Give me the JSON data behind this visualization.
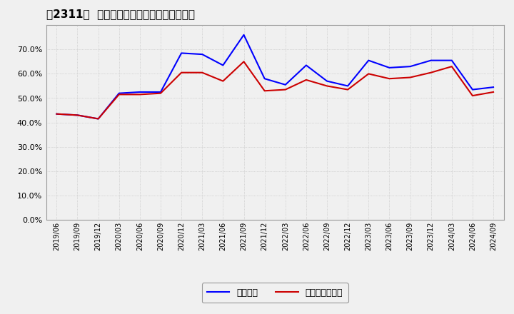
{
  "title": "、2311、 固定比率、固定長期適合率の推移",
  "title_bracket_open": "【",
  "title_bracket_close": "】",
  "title_number": "2311",
  "title_text": "固定比率、固定長期適合率の推移",
  "x_labels": [
    "2019/06",
    "2019/09",
    "2019/12",
    "2020/03",
    "2020/06",
    "2020/09",
    "2020/12",
    "2021/03",
    "2021/06",
    "2021/09",
    "2021/12",
    "2022/03",
    "2022/06",
    "2022/09",
    "2022/12",
    "2023/03",
    "2023/06",
    "2023/09",
    "2023/12",
    "2024/03",
    "2024/06",
    "2024/09"
  ],
  "fixed_ratio": [
    43.5,
    43.0,
    41.5,
    52.0,
    52.5,
    52.5,
    68.5,
    68.0,
    63.5,
    76.0,
    58.0,
    55.5,
    63.5,
    57.0,
    55.0,
    65.5,
    62.5,
    63.0,
    65.5,
    65.5,
    53.5,
    54.5
  ],
  "fixed_long_ratio": [
    43.5,
    43.0,
    41.5,
    51.5,
    51.5,
    52.0,
    60.5,
    60.5,
    57.0,
    65.0,
    53.0,
    53.5,
    57.5,
    55.0,
    53.5,
    60.0,
    58.0,
    58.5,
    60.5,
    63.0,
    51.0,
    52.5
  ],
  "blue_color": "#0000ff",
  "red_color": "#cc0000",
  "bg_color": "#f0f0f0",
  "grid_color": "#aaaaaa",
  "ylim": [
    0,
    80
  ],
  "yticks": [
    0,
    10,
    20,
    30,
    40,
    50,
    60,
    70
  ],
  "legend_blue": "固定比率",
  "legend_red": "固定長期適合率"
}
